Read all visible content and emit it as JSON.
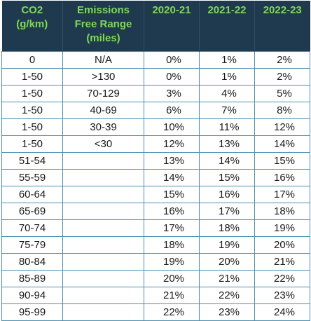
{
  "header": {
    "col1": [
      "CO2",
      "(g/km)"
    ],
    "col2": [
      "Emissions",
      "Free Range",
      "(miles)"
    ],
    "col3": "2020-21",
    "col4": "2021-22",
    "col5": "2022-23"
  },
  "rows": [
    {
      "co2": "0",
      "range": "N/A",
      "y1": "0%",
      "y2": "1%",
      "y3": "2%"
    },
    {
      "co2": "1-50",
      "range": ">130",
      "y1": "0%",
      "y2": "1%",
      "y3": "2%"
    },
    {
      "co2": "1-50",
      "range": "70-129",
      "y1": "3%",
      "y2": "4%",
      "y3": "5%"
    },
    {
      "co2": "1-50",
      "range": "40-69",
      "y1": "6%",
      "y2": "7%",
      "y3": "8%"
    },
    {
      "co2": "1-50",
      "range": "30-39",
      "y1": "10%",
      "y2": "11%",
      "y3": "12%"
    },
    {
      "co2": "1-50",
      "range": "<30",
      "y1": "12%",
      "y2": "13%",
      "y3": "14%"
    },
    {
      "co2": "51-54",
      "range": "",
      "y1": "13%",
      "y2": "14%",
      "y3": "15%"
    },
    {
      "co2": "55-59",
      "range": "",
      "y1": "14%",
      "y2": "15%",
      "y3": "16%"
    },
    {
      "co2": "60-64",
      "range": "",
      "y1": "15%",
      "y2": "16%",
      "y3": "17%"
    },
    {
      "co2": "65-69",
      "range": "",
      "y1": "16%",
      "y2": "17%",
      "y3": "18%"
    },
    {
      "co2": "70-74",
      "range": "",
      "y1": "17%",
      "y2": "18%",
      "y3": "19%"
    },
    {
      "co2": "75-79",
      "range": "",
      "y1": "18%",
      "y2": "19%",
      "y3": "20%"
    },
    {
      "co2": "80-84",
      "range": "",
      "y1": "19%",
      "y2": "20%",
      "y3": "21%"
    },
    {
      "co2": "85-89",
      "range": "",
      "y1": "20%",
      "y2": "21%",
      "y3": "22%"
    },
    {
      "co2": "90-94",
      "range": "",
      "y1": "21%",
      "y2": "22%",
      "y3": "23%"
    },
    {
      "co2": "95-99",
      "range": "",
      "y1": "22%",
      "y2": "23%",
      "y3": "24%"
    }
  ],
  "colors": {
    "header_bg": "#1f3a4e",
    "header_text": "#7ed957",
    "grid": "#4a8fb0"
  }
}
